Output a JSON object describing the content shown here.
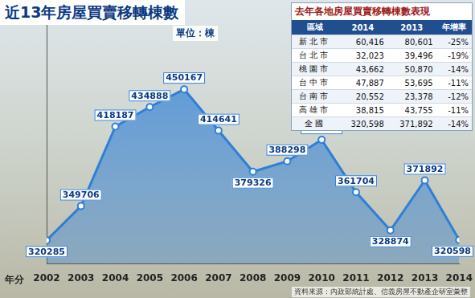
{
  "chart_data": {
    "type": "area",
    "title": "近13年房屋買賣移轉棟數",
    "subtitle": "單位：棟",
    "xlabel": "年分",
    "categories": [
      "2002",
      "2003",
      "2004",
      "2005",
      "2006",
      "2007",
      "2008",
      "2009",
      "2010",
      "2011",
      "2012",
      "2013",
      "2014"
    ],
    "values": [
      320285,
      349706,
      418187,
      434888,
      450167,
      414641,
      379326,
      388298,
      406689,
      361704,
      328874,
      371892,
      320598
    ],
    "color": "#2f7fd6",
    "marker": "circle",
    "ylim": [
      300000,
      520000
    ],
    "grid": false,
    "tick_labels": "x",
    "data_labels": true,
    "legend": null
  },
  "table": {
    "title": "去年各地房屋買賣移轉棟數表現",
    "header": [
      "區域",
      "2014",
      "2013",
      "年增率"
    ],
    "rows": [
      [
        "新北市",
        "60,416",
        "80,601",
        "-25%"
      ],
      [
        "台北市",
        "32,023",
        "39,496",
        "-19%"
      ],
      [
        "桃園市",
        "43,662",
        "50,870",
        "-14%"
      ],
      [
        "台中市",
        "47,887",
        "53,695",
        "-11%"
      ],
      [
        "台南市",
        "20,552",
        "23,378",
        "-12%"
      ],
      [
        "高雄市",
        "38,815",
        "43,755",
        "-11%"
      ],
      [
        "全國",
        "320,598",
        "371,892",
        "-14%"
      ]
    ]
  },
  "source": "資料來源：內政部統計處、信義房屋不動產企研室彙整"
}
